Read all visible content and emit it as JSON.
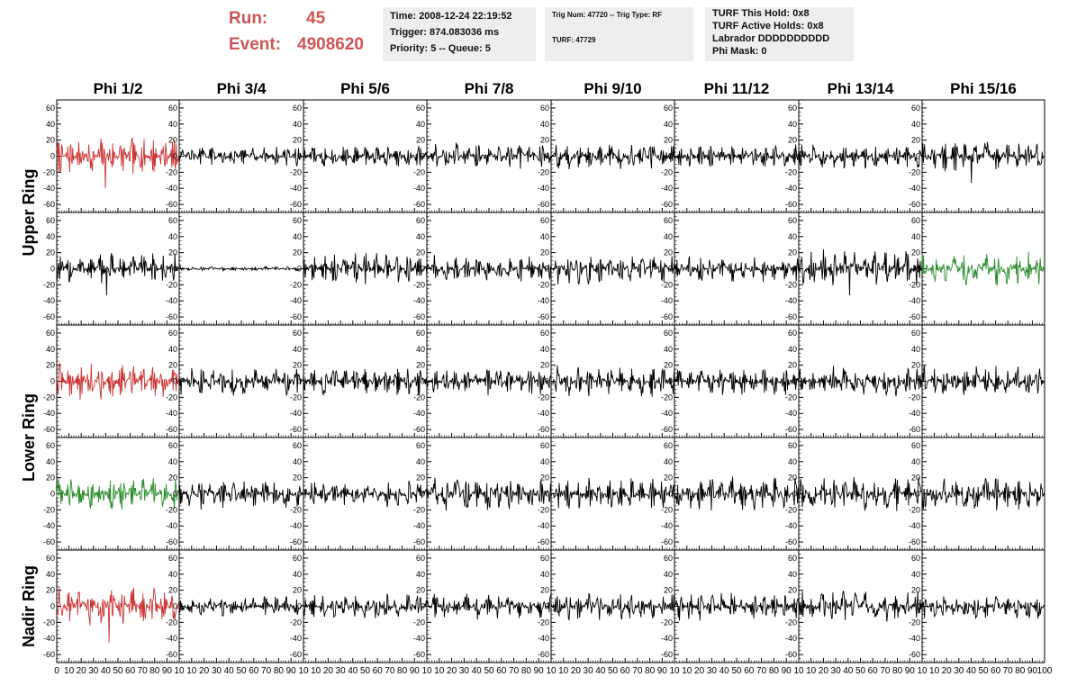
{
  "header": {
    "run_label": "Run:",
    "run_value": "45",
    "event_label": "Event:",
    "event_value": "4908620",
    "info_box_1": [
      "Time: 2008-12-24 22:19:52",
      "Trigger: 874.083036 ms",
      "Priority: 5 -- Queue: 5"
    ],
    "info_box_2": [
      "Trig Num: 47720 -- Trig Type: RF",
      "TURF: 47729"
    ],
    "info_box_3": [
      "TURF This Hold: 0x8",
      "TURF Active Holds: 0x8",
      "Labrador DDDDDDDDDD",
      "Phi Mask: 0"
    ]
  },
  "colors": {
    "accent_red": "#d05555",
    "trace_default": "#000000",
    "trace_red": "#cc3333",
    "trace_green": "#2a8c2a"
  },
  "chart_data": {
    "type": "line",
    "column_titles": [
      "Phi 1/2",
      "Phi 3/4",
      "Phi 5/6",
      "Phi 7/8",
      "Phi 9/10",
      "Phi 11/12",
      "Phi 13/14",
      "Phi 15/16"
    ],
    "row_groups": [
      {
        "label": "Upper Ring",
        "rows": [
          0,
          1
        ]
      },
      {
        "label": "Lower Ring",
        "rows": [
          2,
          3
        ]
      },
      {
        "label": "Nadir Ring",
        "rows": [
          4
        ]
      }
    ],
    "xlim": [
      0,
      100
    ],
    "ylim": [
      -70,
      70
    ],
    "x_ticks": [
      0,
      10,
      20,
      30,
      40,
      50,
      60,
      70,
      80,
      90,
      100
    ],
    "x_tick_labels_first": [
      "0",
      "10",
      "20",
      "30",
      "40",
      "50",
      "60",
      "70",
      "80",
      "90",
      "10"
    ],
    "x_tick_labels": [
      "10",
      "20",
      "30",
      "40",
      "50",
      "60",
      "70",
      "80",
      "90",
      "10"
    ],
    "x_tick_labels_last": [
      "10",
      "20",
      "30",
      "40",
      "50",
      "60",
      "70",
      "80",
      "90",
      "100"
    ],
    "y_ticks": [
      -60,
      -40,
      -20,
      0,
      20,
      40,
      60
    ],
    "y_tick_labels": [
      "-60",
      "-40",
      "-20",
      "0",
      "20",
      "40",
      "60"
    ],
    "panels": [
      [
        {
          "color": "red",
          "amp": 24,
          "spike": -40
        },
        {
          "color": "black",
          "amp": 13,
          "spike": 0
        },
        {
          "color": "black",
          "amp": 15,
          "spike": 0
        },
        {
          "color": "black",
          "amp": 17,
          "spike": 0
        },
        {
          "color": "black",
          "amp": 18,
          "spike": 0
        },
        {
          "color": "black",
          "amp": 15,
          "spike": 0
        },
        {
          "color": "black",
          "amp": 15,
          "spike": 0
        },
        {
          "color": "black",
          "amp": 20,
          "spike": -33
        }
      ],
      [
        {
          "color": "black",
          "amp": 20,
          "spike": -33
        },
        {
          "color": "black",
          "amp": 3,
          "spike": 0
        },
        {
          "color": "black",
          "amp": 20,
          "spike": 0
        },
        {
          "color": "black",
          "amp": 18,
          "spike": 0
        },
        {
          "color": "black",
          "amp": 20,
          "spike": 0
        },
        {
          "color": "black",
          "amp": 18,
          "spike": 0
        },
        {
          "color": "black",
          "amp": 25,
          "spike": -33
        },
        {
          "color": "green",
          "amp": 22,
          "spike": 0
        }
      ],
      [
        {
          "color": "red",
          "amp": 24,
          "spike": 0
        },
        {
          "color": "black",
          "amp": 18,
          "spike": 0
        },
        {
          "color": "black",
          "amp": 18,
          "spike": 0
        },
        {
          "color": "black",
          "amp": 18,
          "spike": 0
        },
        {
          "color": "black",
          "amp": 20,
          "spike": 0
        },
        {
          "color": "black",
          "amp": 18,
          "spike": 0
        },
        {
          "color": "black",
          "amp": 20,
          "spike": 0
        },
        {
          "color": "black",
          "amp": 20,
          "spike": 0
        }
      ],
      [
        {
          "color": "green",
          "amp": 20,
          "spike": 0
        },
        {
          "color": "black",
          "amp": 20,
          "spike": 0
        },
        {
          "color": "black",
          "amp": 18,
          "spike": 0
        },
        {
          "color": "black",
          "amp": 22,
          "spike": 0
        },
        {
          "color": "black",
          "amp": 20,
          "spike": 0
        },
        {
          "color": "black",
          "amp": 22,
          "spike": 0
        },
        {
          "color": "black",
          "amp": 22,
          "spike": 0
        },
        {
          "color": "black",
          "amp": 22,
          "spike": 0
        }
      ],
      [
        {
          "color": "red",
          "amp": 26,
          "spike": -45
        },
        {
          "color": "black",
          "amp": 13,
          "spike": 0
        },
        {
          "color": "black",
          "amp": 17,
          "spike": 0
        },
        {
          "color": "black",
          "amp": 17,
          "spike": 0
        },
        {
          "color": "black",
          "amp": 18,
          "spike": 0
        },
        {
          "color": "black",
          "amp": 18,
          "spike": 0
        },
        {
          "color": "black",
          "amp": 20,
          "spike": 0
        },
        {
          "color": "black",
          "amp": 16,
          "spike": 0
        }
      ]
    ]
  }
}
